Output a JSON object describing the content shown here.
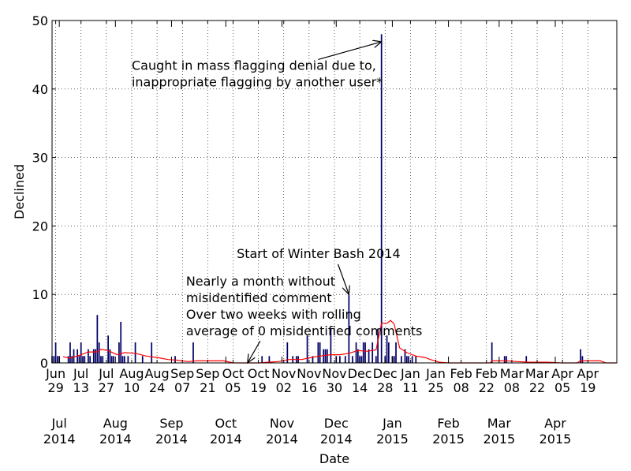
{
  "chart_data": {
    "type": "bar",
    "xlabel": "Date",
    "ylabel": "Declined",
    "ylim": [
      0,
      50
    ],
    "y_ticks": [
      0,
      10,
      20,
      30,
      40,
      50
    ],
    "xlim": [
      "2014-06-27",
      "2015-05-05"
    ],
    "grid": true,
    "bar_color": "#000066",
    "rolling_color": "#ff0000",
    "minor_ticks": [
      {
        "date": "2014-06-29",
        "label": [
          "Jun",
          "29"
        ]
      },
      {
        "date": "2014-07-13",
        "label": [
          "Jul",
          "13"
        ]
      },
      {
        "date": "2014-07-27",
        "label": [
          "Jul",
          "27"
        ]
      },
      {
        "date": "2014-08-10",
        "label": [
          "Aug",
          "10"
        ]
      },
      {
        "date": "2014-08-24",
        "label": [
          "Aug",
          "24"
        ]
      },
      {
        "date": "2014-09-07",
        "label": [
          "Sep",
          "07"
        ]
      },
      {
        "date": "2014-09-21",
        "label": [
          "Sep",
          "21"
        ]
      },
      {
        "date": "2014-10-05",
        "label": [
          "Oct",
          "05"
        ]
      },
      {
        "date": "2014-10-19",
        "label": [
          "Oct",
          "19"
        ]
      },
      {
        "date": "2014-11-02",
        "label": [
          "Nov",
          "02"
        ]
      },
      {
        "date": "2014-11-16",
        "label": [
          "Nov",
          "16"
        ]
      },
      {
        "date": "2014-11-30",
        "label": [
          "Nov",
          "30"
        ]
      },
      {
        "date": "2014-12-14",
        "label": [
          "Dec",
          "14"
        ]
      },
      {
        "date": "2014-12-28",
        "label": [
          "Dec",
          "28"
        ]
      },
      {
        "date": "2015-01-11",
        "label": [
          "Jan",
          "11"
        ]
      },
      {
        "date": "2015-01-25",
        "label": [
          "Jan",
          "25"
        ]
      },
      {
        "date": "2015-02-08",
        "label": [
          "Feb",
          "08"
        ]
      },
      {
        "date": "2015-02-22",
        "label": [
          "Feb",
          "22"
        ]
      },
      {
        "date": "2015-03-08",
        "label": [
          "Mar",
          "08"
        ]
      },
      {
        "date": "2015-03-22",
        "label": [
          "Mar",
          "22"
        ]
      },
      {
        "date": "2015-04-05",
        "label": [
          "Apr",
          "05"
        ]
      },
      {
        "date": "2015-04-19",
        "label": [
          "Apr",
          "19"
        ]
      }
    ],
    "major_ticks": [
      {
        "date": "2014-07-01",
        "label": [
          "Jul",
          "2014"
        ]
      },
      {
        "date": "2014-08-01",
        "label": [
          "Aug",
          "2014"
        ]
      },
      {
        "date": "2014-09-01",
        "label": [
          "Sep",
          "2014"
        ]
      },
      {
        "date": "2014-10-01",
        "label": [
          "Oct",
          "2014"
        ]
      },
      {
        "date": "2014-11-01",
        "label": [
          "Nov",
          "2014"
        ]
      },
      {
        "date": "2014-12-01",
        "label": [
          "Dec",
          "2014"
        ]
      },
      {
        "date": "2015-01-01",
        "label": [
          "Jan",
          "2015"
        ]
      },
      {
        "date": "2015-02-01",
        "label": [
          "Feb",
          "2015"
        ]
      },
      {
        "date": "2015-03-01",
        "label": [
          "Mar",
          "2015"
        ]
      },
      {
        "date": "2015-04-01",
        "label": [
          "Apr",
          "2015"
        ]
      }
    ],
    "bars": [
      {
        "date": "2014-06-27",
        "value": 1
      },
      {
        "date": "2014-06-28",
        "value": 1
      },
      {
        "date": "2014-06-29",
        "value": 3
      },
      {
        "date": "2014-06-30",
        "value": 1
      },
      {
        "date": "2014-07-01",
        "value": 1
      },
      {
        "date": "2014-07-06",
        "value": 1
      },
      {
        "date": "2014-07-07",
        "value": 3
      },
      {
        "date": "2014-07-08",
        "value": 1
      },
      {
        "date": "2014-07-09",
        "value": 2
      },
      {
        "date": "2014-07-11",
        "value": 2
      },
      {
        "date": "2014-07-12",
        "value": 1
      },
      {
        "date": "2014-07-13",
        "value": 3
      },
      {
        "date": "2014-07-14",
        "value": 1
      },
      {
        "date": "2014-07-15",
        "value": 1
      },
      {
        "date": "2014-07-17",
        "value": 2
      },
      {
        "date": "2014-07-18",
        "value": 1
      },
      {
        "date": "2014-07-20",
        "value": 2
      },
      {
        "date": "2014-07-21",
        "value": 2
      },
      {
        "date": "2014-07-22",
        "value": 7
      },
      {
        "date": "2014-07-23",
        "value": 3
      },
      {
        "date": "2014-07-24",
        "value": 1
      },
      {
        "date": "2014-07-25",
        "value": 1
      },
      {
        "date": "2014-07-28",
        "value": 4
      },
      {
        "date": "2014-07-29",
        "value": 2
      },
      {
        "date": "2014-07-30",
        "value": 1
      },
      {
        "date": "2014-07-31",
        "value": 1
      },
      {
        "date": "2014-08-03",
        "value": 3
      },
      {
        "date": "2014-08-04",
        "value": 6
      },
      {
        "date": "2014-08-05",
        "value": 1
      },
      {
        "date": "2014-08-06",
        "value": 1
      },
      {
        "date": "2014-08-08",
        "value": 1
      },
      {
        "date": "2014-08-12",
        "value": 3
      },
      {
        "date": "2014-08-16",
        "value": 1
      },
      {
        "date": "2014-08-21",
        "value": 3
      },
      {
        "date": "2014-09-03",
        "value": 1
      },
      {
        "date": "2014-09-13",
        "value": 3
      },
      {
        "date": "2014-10-21",
        "value": 1
      },
      {
        "date": "2014-10-25",
        "value": 1
      },
      {
        "date": "2014-11-04",
        "value": 3
      },
      {
        "date": "2014-11-07",
        "value": 1
      },
      {
        "date": "2014-11-09",
        "value": 1
      },
      {
        "date": "2014-11-10",
        "value": 1
      },
      {
        "date": "2014-11-15",
        "value": 4
      },
      {
        "date": "2014-11-18",
        "value": 1
      },
      {
        "date": "2014-11-21",
        "value": 3
      },
      {
        "date": "2014-11-22",
        "value": 3
      },
      {
        "date": "2014-11-24",
        "value": 2
      },
      {
        "date": "2014-11-25",
        "value": 2
      },
      {
        "date": "2014-11-26",
        "value": 2
      },
      {
        "date": "2014-11-28",
        "value": 5
      },
      {
        "date": "2014-12-01",
        "value": 1
      },
      {
        "date": "2014-12-03",
        "value": 1
      },
      {
        "date": "2014-12-06",
        "value": 1
      },
      {
        "date": "2014-12-08",
        "value": 10
      },
      {
        "date": "2014-12-10",
        "value": 1
      },
      {
        "date": "2014-12-12",
        "value": 3
      },
      {
        "date": "2014-12-13",
        "value": 2
      },
      {
        "date": "2014-12-14",
        "value": 1
      },
      {
        "date": "2014-12-15",
        "value": 1
      },
      {
        "date": "2014-12-16",
        "value": 3
      },
      {
        "date": "2014-12-17",
        "value": 3
      },
      {
        "date": "2014-12-19",
        "value": 2
      },
      {
        "date": "2014-12-21",
        "value": 3
      },
      {
        "date": "2014-12-23",
        "value": 1
      },
      {
        "date": "2014-12-24",
        "value": 5
      },
      {
        "date": "2014-12-26",
        "value": 48
      },
      {
        "date": "2014-12-28",
        "value": 1
      },
      {
        "date": "2014-12-29",
        "value": 4
      },
      {
        "date": "2014-12-30",
        "value": 3
      },
      {
        "date": "2015-01-01",
        "value": 1
      },
      {
        "date": "2015-01-02",
        "value": 1
      },
      {
        "date": "2015-01-03",
        "value": 3
      },
      {
        "date": "2015-01-06",
        "value": 1
      },
      {
        "date": "2015-01-08",
        "value": 2
      },
      {
        "date": "2015-01-09",
        "value": 1
      },
      {
        "date": "2015-01-10",
        "value": 1
      },
      {
        "date": "2015-01-12",
        "value": 1
      },
      {
        "date": "2015-01-14",
        "value": 1
      },
      {
        "date": "2015-02-25",
        "value": 3
      },
      {
        "date": "2015-03-04",
        "value": 1
      },
      {
        "date": "2015-03-05",
        "value": 1
      },
      {
        "date": "2015-03-16",
        "value": 1
      },
      {
        "date": "2015-04-15",
        "value": 2
      },
      {
        "date": "2015-04-16",
        "value": 1
      }
    ],
    "rolling_average": [
      {
        "date": "2014-07-03",
        "value": 0.9
      },
      {
        "date": "2014-07-07",
        "value": 0.7
      },
      {
        "date": "2014-07-12",
        "value": 1.1
      },
      {
        "date": "2014-07-17",
        "value": 1.6
      },
      {
        "date": "2014-07-22",
        "value": 1.6
      },
      {
        "date": "2014-07-24",
        "value": 2.0
      },
      {
        "date": "2014-07-28",
        "value": 1.8
      },
      {
        "date": "2014-08-02",
        "value": 1.2
      },
      {
        "date": "2014-08-06",
        "value": 1.5
      },
      {
        "date": "2014-08-12",
        "value": 1.4
      },
      {
        "date": "2014-08-18",
        "value": 1.0
      },
      {
        "date": "2014-08-24",
        "value": 0.8
      },
      {
        "date": "2014-08-30",
        "value": 0.5
      },
      {
        "date": "2014-09-04",
        "value": 0.4
      },
      {
        "date": "2014-09-10",
        "value": 0.2
      },
      {
        "date": "2014-09-15",
        "value": 0.3
      },
      {
        "date": "2014-09-22",
        "value": 0.3
      },
      {
        "date": "2014-09-30",
        "value": 0.3
      },
      {
        "date": "2014-10-05",
        "value": 0.0
      },
      {
        "date": "2014-10-20",
        "value": 0.0
      },
      {
        "date": "2014-10-24",
        "value": 0.1
      },
      {
        "date": "2014-10-30",
        "value": 0.2
      },
      {
        "date": "2014-11-05",
        "value": 0.5
      },
      {
        "date": "2014-11-12",
        "value": 0.5
      },
      {
        "date": "2014-11-17",
        "value": 0.8
      },
      {
        "date": "2014-11-22",
        "value": 1.0
      },
      {
        "date": "2014-11-28",
        "value": 1.2
      },
      {
        "date": "2014-12-03",
        "value": 1.2
      },
      {
        "date": "2014-12-08",
        "value": 1.4
      },
      {
        "date": "2014-12-13",
        "value": 1.8
      },
      {
        "date": "2014-12-18",
        "value": 1.7
      },
      {
        "date": "2014-12-23",
        "value": 1.9
      },
      {
        "date": "2014-12-26",
        "value": 5.8
      },
      {
        "date": "2014-12-29",
        "value": 5.8
      },
      {
        "date": "2014-12-31",
        "value": 6.2
      },
      {
        "date": "2015-01-02",
        "value": 5.7
      },
      {
        "date": "2015-01-05",
        "value": 2.2
      },
      {
        "date": "2015-01-09",
        "value": 1.5
      },
      {
        "date": "2015-01-14",
        "value": 1.0
      },
      {
        "date": "2015-01-19",
        "value": 0.8
      },
      {
        "date": "2015-01-22",
        "value": 0.5
      },
      {
        "date": "2015-01-27",
        "value": 0.1
      },
      {
        "date": "2015-02-01",
        "value": 0.0
      },
      {
        "date": "2015-02-24",
        "value": 0.0
      },
      {
        "date": "2015-02-25",
        "value": 0.3
      },
      {
        "date": "2015-03-05",
        "value": 0.3
      },
      {
        "date": "2015-03-11",
        "value": 0.2
      },
      {
        "date": "2015-03-18",
        "value": 0.1
      },
      {
        "date": "2015-03-28",
        "value": 0.1
      },
      {
        "date": "2015-04-04",
        "value": 0.0
      },
      {
        "date": "2015-04-13",
        "value": 0.0
      },
      {
        "date": "2015-04-15",
        "value": 0.3
      },
      {
        "date": "2015-04-26",
        "value": 0.3
      },
      {
        "date": "2015-04-29",
        "value": 0.0
      },
      {
        "date": "2015-05-05",
        "value": 0.0
      }
    ],
    "annotations": [
      {
        "id": "mass-flagging",
        "lines": [
          "Caught in mass flagging denial due to,",
          "inappropriate flagging by another user*"
        ],
        "text_date": "2014-08-10",
        "text_value": 42.8,
        "arrow_from_date": "2014-11-21",
        "arrow_from_value": 44.3,
        "arrow_to_date": "2014-12-26",
        "arrow_to_value": 46.9
      },
      {
        "id": "winter-bash",
        "lines": [
          "Start of Winter Bash 2014"
        ],
        "text_date": "2014-10-07",
        "text_value": 15.3,
        "arrow_from_date": "2014-12-02",
        "arrow_from_value": 14.4,
        "arrow_to_date": "2014-12-08",
        "arrow_to_value": 10.0
      },
      {
        "id": "no-misidentified",
        "lines": [
          "Nearly a month without",
          "misidentified comment",
          "Over two weeks with rolling",
          "average of 0 misidentified comments"
        ],
        "text_date": "2014-09-09",
        "text_value": 11.3,
        "arrow_from_date": "2014-10-20",
        "arrow_from_value": 3.2,
        "arrow_to_date": "2014-10-13",
        "arrow_to_value": 0.0
      }
    ]
  }
}
